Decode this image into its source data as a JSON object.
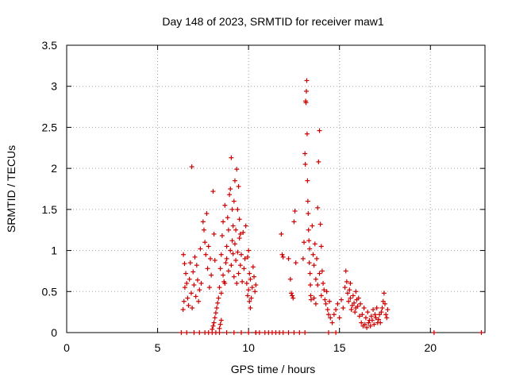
{
  "chart_data": {
    "type": "scatter",
    "title": "Day 148 of 2023, SRMTID for receiver maw1",
    "xlabel": "GPS time / hours",
    "ylabel": "SRMTID / TECUs",
    "xlim": [
      0,
      23
    ],
    "ylim": [
      0,
      3.5
    ],
    "x_ticks": [
      0,
      5,
      10,
      15,
      20
    ],
    "x_tick_labels": [
      "0",
      "5",
      "10",
      "15",
      "20"
    ],
    "y_ticks": [
      0,
      0.5,
      1,
      1.5,
      2,
      2.5,
      3,
      3.5
    ],
    "y_tick_labels": [
      "0",
      "0.5",
      "1",
      "1.5",
      "2",
      "2.5",
      "3",
      "3.5"
    ],
    "grid": true,
    "marker": "plus",
    "series": [
      {
        "name": "maw1",
        "color": "#cc0000",
        "points": [
          [
            6.3,
            0.0
          ],
          [
            6.6,
            0.0
          ],
          [
            7.0,
            0.0
          ],
          [
            7.3,
            0.0
          ],
          [
            7.6,
            0.0
          ],
          [
            7.8,
            0.0
          ],
          [
            8.0,
            0.0
          ],
          [
            8.2,
            0.0
          ],
          [
            8.4,
            0.0
          ],
          [
            8.8,
            0.0
          ],
          [
            9.2,
            0.0
          ],
          [
            9.6,
            0.0
          ],
          [
            10.0,
            0.0
          ],
          [
            10.4,
            0.0
          ],
          [
            10.6,
            0.0
          ],
          [
            10.9,
            0.0
          ],
          [
            11.1,
            0.0
          ],
          [
            11.3,
            0.0
          ],
          [
            11.5,
            0.0
          ],
          [
            11.7,
            0.0
          ],
          [
            11.9,
            0.0
          ],
          [
            12.2,
            0.0
          ],
          [
            12.5,
            0.0
          ],
          [
            12.8,
            0.0
          ],
          [
            13.1,
            0.0
          ],
          [
            14.4,
            0.0
          ],
          [
            14.8,
            0.0
          ],
          [
            20.2,
            0.0
          ],
          [
            22.8,
            0.0
          ],
          [
            6.4,
            0.28
          ],
          [
            6.45,
            0.38
          ],
          [
            6.5,
            0.55
          ],
          [
            6.55,
            0.72
          ],
          [
            6.6,
            0.6
          ],
          [
            6.65,
            0.42
          ],
          [
            6.7,
            0.33
          ],
          [
            6.75,
            0.65
          ],
          [
            6.8,
            0.85
          ],
          [
            6.85,
            0.48
          ],
          [
            6.9,
            0.3
          ],
          [
            6.95,
            0.74
          ],
          [
            7.0,
            0.58
          ],
          [
            7.05,
            0.92
          ],
          [
            7.1,
            0.44
          ],
          [
            7.15,
            0.82
          ],
          [
            7.2,
            0.64
          ],
          [
            7.25,
            0.38
          ],
          [
            7.3,
            0.52
          ],
          [
            7.35,
            1.02
          ],
          [
            6.42,
            0.95
          ],
          [
            6.48,
            0.84
          ],
          [
            6.88,
            2.02
          ],
          [
            7.4,
            0.6
          ],
          [
            7.5,
            1.35
          ],
          [
            7.55,
            1.25
          ],
          [
            7.6,
            1.1
          ],
          [
            7.65,
            0.95
          ],
          [
            7.7,
            1.45
          ],
          [
            7.75,
            0.78
          ],
          [
            7.8,
            1.05
          ],
          [
            7.85,
            0.55
          ],
          [
            7.9,
            0.9
          ],
          [
            7.95,
            0.7
          ],
          [
            8.05,
            1.72
          ],
          [
            8.1,
            1.2
          ],
          [
            8.15,
            0.88
          ],
          [
            8.0,
            0.04
          ],
          [
            8.05,
            0.08
          ],
          [
            8.1,
            0.12
          ],
          [
            8.15,
            0.18
          ],
          [
            8.2,
            0.24
          ],
          [
            8.25,
            0.3
          ],
          [
            8.3,
            0.36
          ],
          [
            8.35,
            0.42
          ],
          [
            8.4,
            0.05
          ],
          [
            8.45,
            0.1
          ],
          [
            8.5,
            0.15
          ],
          [
            8.4,
            0.55
          ],
          [
            8.45,
            0.78
          ],
          [
            8.5,
            0.95
          ],
          [
            8.55,
            1.18
          ],
          [
            8.6,
            1.35
          ],
          [
            8.65,
            0.62
          ],
          [
            8.7,
            1.55
          ],
          [
            8.75,
            0.85
          ],
          [
            8.8,
            1.05
          ],
          [
            8.85,
            1.4
          ],
          [
            8.9,
            1.25
          ],
          [
            8.95,
            1.68
          ],
          [
            9.0,
            1.75
          ],
          [
            9.05,
            2.13
          ],
          [
            9.1,
            1.5
          ],
          [
            9.15,
            1.3
          ],
          [
            9.2,
            1.6
          ],
          [
            9.25,
            1.85
          ],
          [
            9.3,
            1.25
          ],
          [
            9.35,
            1.99
          ],
          [
            9.4,
            1.5
          ],
          [
            9.45,
            1.78
          ],
          [
            9.5,
            1.38
          ],
          [
            9.55,
            1.2
          ],
          [
            8.5,
            0.48
          ],
          [
            8.6,
            0.7
          ],
          [
            8.7,
            0.6
          ],
          [
            8.8,
            0.9
          ],
          [
            8.9,
            0.75
          ],
          [
            9.0,
            1.0
          ],
          [
            9.05,
            0.82
          ],
          [
            9.1,
            1.12
          ],
          [
            9.15,
            0.96
          ],
          [
            9.2,
            0.68
          ],
          [
            9.25,
            1.08
          ],
          [
            9.3,
            0.88
          ],
          [
            9.35,
            0.6
          ],
          [
            9.4,
            0.98
          ],
          [
            9.45,
            0.72
          ],
          [
            9.5,
            1.15
          ],
          [
            9.55,
            0.82
          ],
          [
            9.6,
            0.95
          ],
          [
            9.65,
            0.62
          ],
          [
            9.7,
            1.22
          ],
          [
            9.75,
            0.78
          ],
          [
            9.8,
            0.9
          ],
          [
            9.85,
            1.3
          ],
          [
            9.9,
            0.6
          ],
          [
            9.95,
            0.45
          ],
          [
            10.0,
            0.52
          ],
          [
            10.05,
            0.38
          ],
          [
            10.1,
            0.65
          ],
          [
            10.15,
            0.42
          ],
          [
            10.2,
            0.55
          ],
          [
            10.25,
            0.8
          ],
          [
            10.3,
            0.68
          ],
          [
            10.35,
            0.5
          ],
          [
            10.4,
            0.58
          ],
          [
            9.95,
            0.92
          ],
          [
            10.0,
            1.0
          ],
          [
            10.05,
            0.72
          ],
          [
            10.1,
            0.3
          ],
          [
            10.4,
            0.0
          ],
          [
            11.8,
            1.2
          ],
          [
            11.85,
            0.95
          ],
          [
            11.9,
            0.92
          ],
          [
            12.2,
            0.9
          ],
          [
            12.3,
            0.65
          ],
          [
            12.35,
            0.48
          ],
          [
            12.4,
            0.45
          ],
          [
            12.45,
            0.42
          ],
          [
            12.5,
            1.35
          ],
          [
            12.55,
            1.48
          ],
          [
            12.6,
            0.85
          ],
          [
            13.0,
            0.9
          ],
          [
            13.05,
            1.1
          ],
          [
            13.1,
            2.18
          ],
          [
            13.12,
            2.05
          ],
          [
            13.14,
            2.82
          ],
          [
            13.16,
            2.8
          ],
          [
            13.18,
            2.94
          ],
          [
            13.2,
            3.07
          ],
          [
            13.22,
            2.42
          ],
          [
            13.24,
            1.85
          ],
          [
            13.26,
            1.6
          ],
          [
            13.28,
            1.45
          ],
          [
            13.3,
            1.25
          ],
          [
            13.32,
            1.12
          ],
          [
            13.34,
            0.85
          ],
          [
            13.36,
            1.02
          ],
          [
            13.38,
            0.72
          ],
          [
            13.4,
            0.58
          ],
          [
            13.42,
            0.45
          ],
          [
            13.44,
            0.4
          ],
          [
            13.5,
            1.3
          ],
          [
            13.55,
            0.95
          ],
          [
            13.6,
            0.82
          ],
          [
            13.65,
            1.08
          ],
          [
            13.7,
            0.65
          ],
          [
            13.75,
            0.9
          ],
          [
            13.8,
            1.52
          ],
          [
            13.85,
            2.08
          ],
          [
            13.9,
            2.46
          ],
          [
            13.95,
            1.32
          ],
          [
            14.0,
            1.05
          ],
          [
            14.05,
            0.75
          ],
          [
            14.1,
            0.6
          ],
          [
            14.15,
            0.52
          ],
          [
            14.2,
            0.4
          ],
          [
            14.25,
            0.35
          ],
          [
            14.3,
            0.5
          ],
          [
            14.35,
            0.28
          ],
          [
            14.4,
            0.22
          ],
          [
            14.45,
            0.38
          ],
          [
            14.5,
            0.18
          ],
          [
            13.6,
            0.42
          ],
          [
            13.7,
            0.35
          ],
          [
            13.8,
            0.58
          ],
          [
            13.9,
            0.72
          ],
          [
            14.0,
            0.45
          ],
          [
            14.6,
            0.12
          ],
          [
            14.7,
            0.22
          ],
          [
            14.8,
            0.28
          ],
          [
            14.9,
            0.35
          ],
          [
            15.0,
            0.18
          ],
          [
            15.1,
            0.4
          ],
          [
            15.2,
            0.3
          ],
          [
            15.3,
            0.55
          ],
          [
            15.35,
            0.75
          ],
          [
            15.4,
            0.62
          ],
          [
            15.45,
            0.48
          ],
          [
            15.5,
            0.38
          ],
          [
            15.55,
            0.52
          ],
          [
            15.6,
            0.42
          ],
          [
            15.65,
            0.28
          ],
          [
            15.7,
            0.33
          ],
          [
            15.75,
            0.45
          ],
          [
            15.8,
            0.36
          ],
          [
            15.85,
            0.25
          ],
          [
            15.9,
            0.3
          ],
          [
            15.95,
            0.4
          ],
          [
            16.0,
            0.32
          ],
          [
            16.1,
            0.2
          ],
          [
            16.2,
            0.12
          ],
          [
            16.3,
            0.08
          ],
          [
            16.4,
            0.1
          ],
          [
            16.5,
            0.06
          ],
          [
            16.6,
            0.12
          ],
          [
            16.7,
            0.08
          ],
          [
            16.8,
            0.15
          ],
          [
            16.9,
            0.1
          ],
          [
            17.0,
            0.18
          ],
          [
            17.1,
            0.12
          ],
          [
            17.2,
            0.22
          ],
          [
            17.3,
            0.25
          ],
          [
            17.35,
            0.3
          ],
          [
            17.4,
            0.38
          ],
          [
            17.45,
            0.48
          ],
          [
            17.5,
            0.35
          ],
          [
            17.55,
            0.22
          ],
          [
            17.6,
            0.18
          ],
          [
            17.65,
            0.28
          ],
          [
            16.15,
            0.35
          ],
          [
            16.25,
            0.22
          ],
          [
            16.35,
            0.3
          ],
          [
            16.45,
            0.18
          ],
          [
            16.55,
            0.25
          ],
          [
            16.65,
            0.15
          ],
          [
            16.75,
            0.2
          ],
          [
            16.85,
            0.28
          ],
          [
            16.95,
            0.22
          ],
          [
            17.05,
            0.3
          ],
          [
            17.15,
            0.16
          ],
          [
            17.25,
            0.12
          ],
          [
            16.05,
            0.42
          ],
          [
            15.9,
            0.5
          ],
          [
            15.6,
            0.6
          ]
        ]
      }
    ]
  }
}
